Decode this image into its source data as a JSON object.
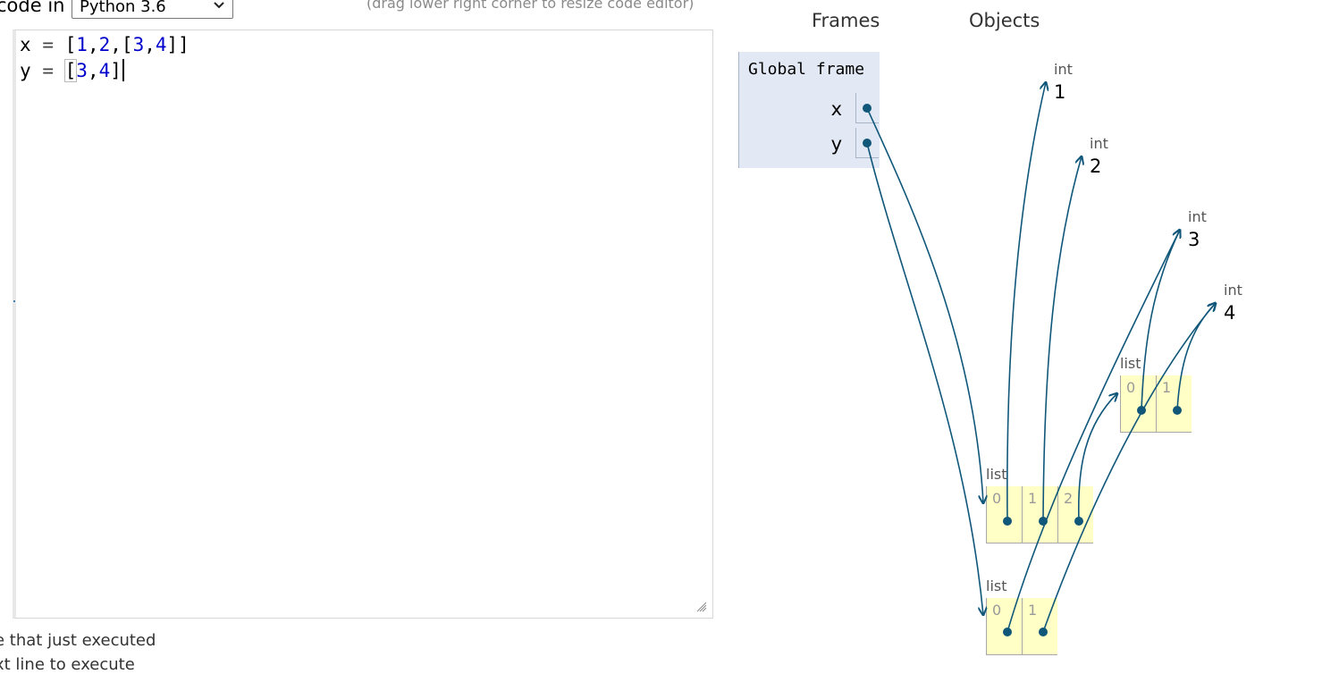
{
  "toolbar": {
    "language_prefix": "code in",
    "language_selected": "Python 3.6",
    "resize_hint": "(drag lower right corner to resize code editor)"
  },
  "editor": {
    "lines": [
      {
        "var": "x",
        "op": "=",
        "open": "[",
        "items": [
          "1",
          ",",
          "2",
          ",",
          "["
        ],
        "inner": [
          "3",
          ",",
          "4"
        ],
        "close": "]]"
      },
      {
        "var": "y",
        "op": "=",
        "open": "[",
        "inner": [
          "3",
          ",",
          "4"
        ],
        "close": "]"
      }
    ]
  },
  "legend": {
    "line1": "e that just executed",
    "line2": "xt line to execute"
  },
  "visualizer": {
    "frames_header": "Frames",
    "objects_header": "Objects",
    "global_frame": {
      "title": "Global frame",
      "vars": [
        "x",
        "y"
      ]
    },
    "ints": [
      {
        "type": "int",
        "value": "1"
      },
      {
        "type": "int",
        "value": "2"
      },
      {
        "type": "int",
        "value": "3"
      },
      {
        "type": "int",
        "value": "4"
      }
    ],
    "lists": [
      {
        "type": "list",
        "indices": [
          "0",
          "1"
        ]
      },
      {
        "type": "list",
        "indices": [
          "0",
          "1",
          "2"
        ]
      },
      {
        "type": "list",
        "indices": [
          "0",
          "1"
        ]
      }
    ],
    "colors": {
      "arrow": "#10577a",
      "frame_bg": "#e2e9f4",
      "list_bg": "#ffffc6"
    }
  }
}
